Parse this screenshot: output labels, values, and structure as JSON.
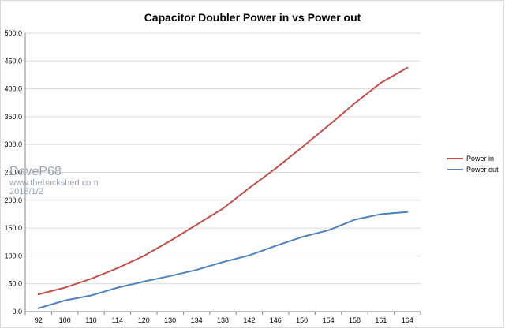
{
  "chart_data": {
    "type": "line",
    "title": "Capacitor Doubler Power in vs Power out",
    "xlabel": "",
    "ylabel": "",
    "categories": [
      "92",
      "100",
      "110",
      "114",
      "120",
      "130",
      "134",
      "138",
      "142",
      "146",
      "150",
      "154",
      "158",
      "161",
      "164"
    ],
    "ylim": [
      0,
      500
    ],
    "yticks": [
      "0.0",
      "50.0",
      "100.0",
      "150.0",
      "200.0",
      "250.0",
      "300.0",
      "350.0",
      "400.0",
      "450.0",
      "500.0"
    ],
    "grid": true,
    "legend": "right",
    "series": [
      {
        "name": "Power in",
        "color": "#c0504d",
        "values": [
          31,
          43,
          59,
          78,
          100,
          127,
          156,
          185,
          222,
          257,
          295,
          334,
          374,
          411,
          438
        ]
      },
      {
        "name": "Power out",
        "color": "#4f81bd",
        "values": [
          6,
          20,
          29,
          43,
          54,
          64,
          75,
          89,
          101,
          118,
          134,
          146,
          165,
          175,
          179
        ]
      }
    ]
  },
  "watermark": {
    "name": "DaveP68",
    "site": "www.thebackshed.com",
    "date": "2018/1/2"
  },
  "colors": {
    "grid": "#d9d9d9",
    "axis": "#868686"
  }
}
